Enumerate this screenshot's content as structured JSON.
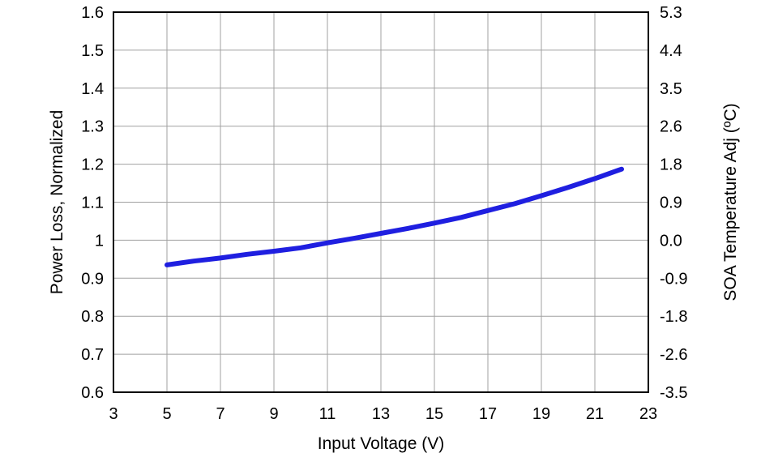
{
  "chart_data": {
    "type": "line",
    "title": "",
    "xlabel": "Input Voltage (V)",
    "ylabel": "Power Loss, Normalized",
    "y2label": "SOA Temperature Adj (ºC)",
    "xlim": [
      3,
      23
    ],
    "ylim": [
      0.6,
      1.6
    ],
    "x_ticks": [
      3,
      5,
      7,
      9,
      11,
      13,
      15,
      17,
      19,
      21,
      23
    ],
    "x_tick_labels": [
      "3",
      "5",
      "7",
      "9",
      "11",
      "13",
      "15",
      "17",
      "19",
      "21",
      "23"
    ],
    "y_ticks": [
      0.6,
      0.7,
      0.8,
      0.9,
      1.0,
      1.1,
      1.2,
      1.3,
      1.4,
      1.5,
      1.6
    ],
    "y_tick_labels": [
      "0.6",
      "0.7",
      "0.8",
      "0.9",
      "1",
      "1.1",
      "1.2",
      "1.3",
      "1.4",
      "1.5",
      "1.6"
    ],
    "y2_tick_labels": [
      "-3.5",
      "-2.6",
      "-1.8",
      "-0.9",
      "0.0",
      "0.9",
      "1.8",
      "2.6",
      "3.5",
      "4.4",
      "5.3"
    ],
    "grid": true,
    "line_color": "#1f1fe0",
    "series": [
      {
        "x": [
          5,
          6,
          7,
          8,
          9,
          10,
          11,
          12,
          13,
          14,
          15,
          16,
          17,
          18,
          19,
          20,
          21,
          22
        ],
        "values": [
          0.935,
          0.945,
          0.953,
          0.963,
          0.971,
          0.98,
          0.993,
          1.005,
          1.018,
          1.031,
          1.045,
          1.06,
          1.078,
          1.096,
          1.117,
          1.139,
          1.162,
          1.187
        ]
      }
    ]
  }
}
